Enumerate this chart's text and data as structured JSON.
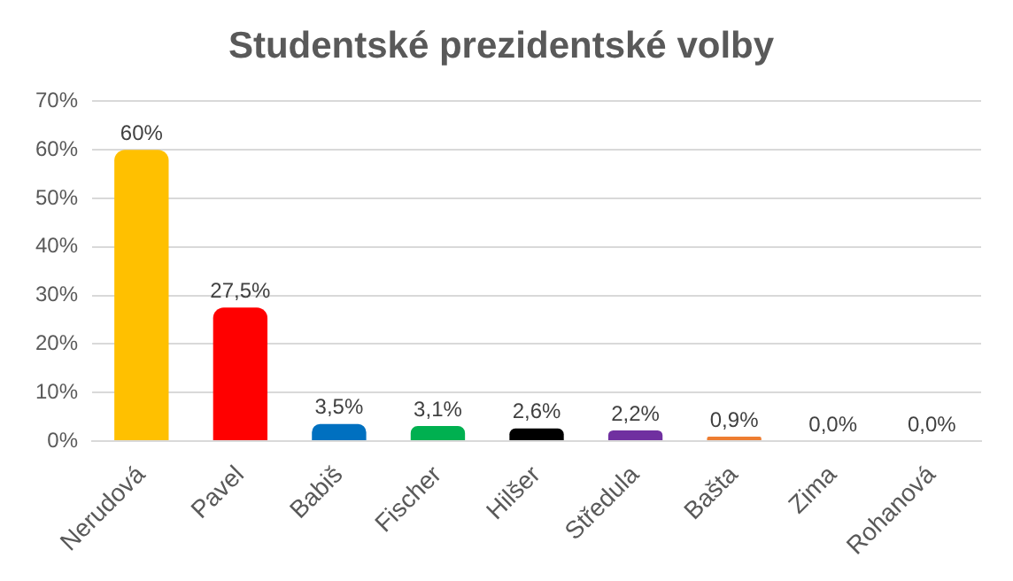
{
  "chart_data": {
    "type": "bar",
    "title": "Studentské prezidentské volby",
    "categories": [
      "Nerudová",
      "Pavel",
      "Babiš",
      "Fischer",
      "Hilšer",
      "Středula",
      "Bašta",
      "Zima",
      "Rohanová"
    ],
    "values": [
      60,
      27.5,
      3.5,
      3.1,
      2.6,
      2.2,
      0.9,
      0,
      0
    ],
    "colors": [
      "#ffc000",
      "#ff0000",
      "#0070c0",
      "#00b050",
      "#000000",
      "#7030a0",
      "#ed7d31",
      "#a5a5a5",
      "#a5a5a5"
    ],
    "value_labels": [
      "60%",
      "27,5%",
      "3,5%",
      "3,1%",
      "2,6%",
      "2,2%",
      "0,9%",
      "0,0%",
      "0,0%"
    ],
    "ylim": [
      0,
      70
    ],
    "yticks": [
      {
        "value": 0,
        "label": "0%"
      },
      {
        "value": 10,
        "label": "10%"
      },
      {
        "value": 20,
        "label": "20%"
      },
      {
        "value": 30,
        "label": "30%"
      },
      {
        "value": 40,
        "label": "40%"
      },
      {
        "value": 50,
        "label": "50%"
      },
      {
        "value": 60,
        "label": "60%"
      },
      {
        "value": 70,
        "label": "70%"
      }
    ],
    "grid": "y",
    "legend": false
  }
}
